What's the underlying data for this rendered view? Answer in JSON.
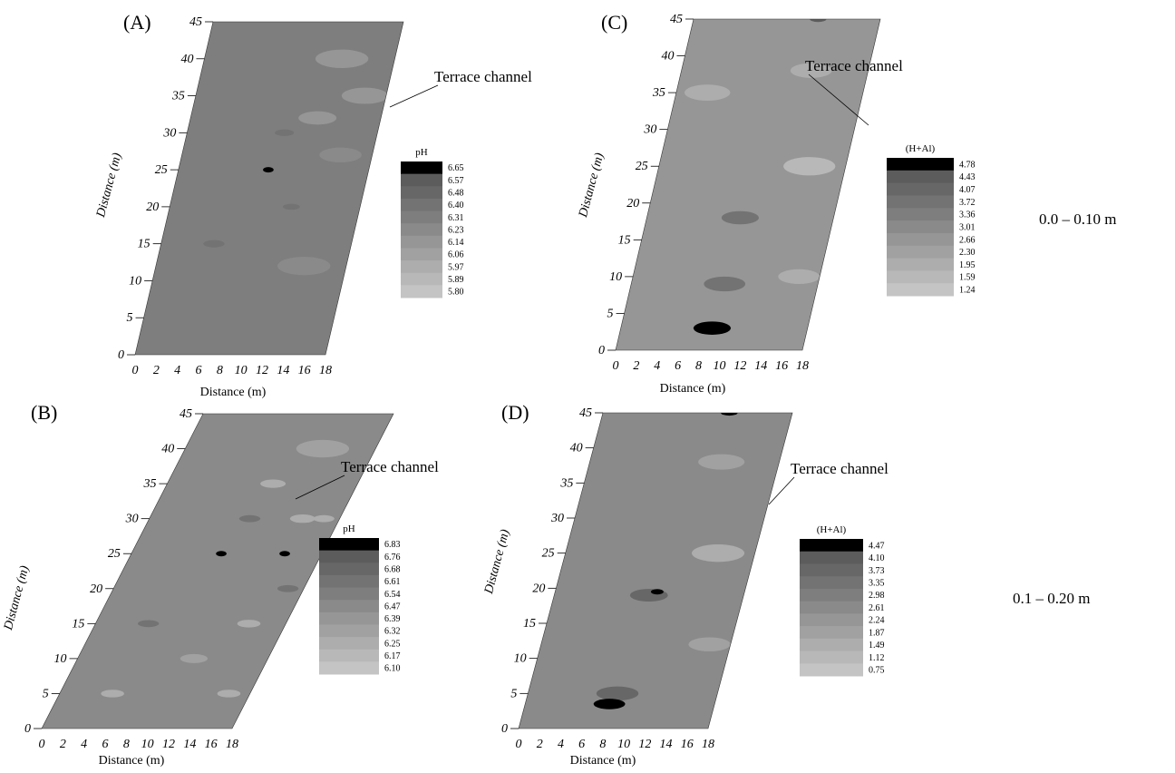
{
  "chart_data": [
    {
      "type": "heatmap",
      "panel_label": "(A)",
      "xlabel": "Distance (m)",
      "ylabel": "Distance (m)",
      "x_ticks": [
        "0",
        "2",
        "4",
        "6",
        "8",
        "10",
        "12",
        "14",
        "16",
        "18"
      ],
      "y_ticks": [
        "0",
        "5",
        "10",
        "15",
        "20",
        "25",
        "30",
        "35",
        "40",
        "45"
      ],
      "xlim": [
        0,
        18
      ],
      "ylim": [
        0,
        45
      ],
      "annotation": "Terrace channel",
      "legend_title": "pH",
      "legend_levels": [
        "6.65",
        "6.57",
        "6.48",
        "6.40",
        "6.31",
        "6.23",
        "6.14",
        "6.06",
        "5.97",
        "5.89",
        "5.80"
      ],
      "background_level": 4,
      "features": [
        {
          "x": 8.5,
          "y": 25,
          "r": 0.5,
          "level": 0
        },
        {
          "x": 9.2,
          "y": 30,
          "r": 0.9,
          "level": 3
        },
        {
          "x": 5.0,
          "y": 15,
          "r": 1.0,
          "level": 3
        },
        {
          "x": 11.5,
          "y": 20,
          "r": 0.8,
          "level": 3
        },
        {
          "x": 13,
          "y": 40,
          "r": 2.5,
          "level": 6
        },
        {
          "x": 16,
          "y": 35,
          "r": 2.2,
          "level": 6
        },
        {
          "x": 12,
          "y": 32,
          "r": 1.8,
          "level": 6
        },
        {
          "x": 15,
          "y": 27,
          "r": 2.0,
          "level": 5
        },
        {
          "x": 14,
          "y": 12,
          "r": 2.5,
          "level": 5
        }
      ]
    },
    {
      "type": "heatmap",
      "panel_label": "(B)",
      "xlabel": "Distance (m)",
      "ylabel": "Distance (m)",
      "x_ticks": [
        "0",
        "2",
        "4",
        "6",
        "8",
        "10",
        "12",
        "14",
        "16",
        "18"
      ],
      "y_ticks": [
        "0",
        "5",
        "10",
        "15",
        "20",
        "25",
        "30",
        "35",
        "40",
        "45"
      ],
      "xlim": [
        0,
        18
      ],
      "ylim": [
        0,
        45
      ],
      "annotation": "Terrace channel",
      "legend_title": "pH",
      "legend_levels": [
        "6.83",
        "6.76",
        "6.68",
        "6.61",
        "6.54",
        "6.47",
        "6.39",
        "6.32",
        "6.25",
        "6.17",
        "6.10"
      ],
      "background_level": 5,
      "features": [
        {
          "x": 8.5,
          "y": 25,
          "r": 0.5,
          "level": 0
        },
        {
          "x": 14.5,
          "y": 25,
          "r": 0.5,
          "level": 0
        },
        {
          "x": 9.5,
          "y": 30,
          "r": 1.0,
          "level": 3
        },
        {
          "x": 16.5,
          "y": 20,
          "r": 1.0,
          "level": 3
        },
        {
          "x": 5.0,
          "y": 15,
          "r": 1.0,
          "level": 3
        },
        {
          "x": 10,
          "y": 35,
          "r": 1.2,
          "level": 8
        },
        {
          "x": 14.5,
          "y": 30,
          "r": 1.2,
          "level": 8
        },
        {
          "x": 16.5,
          "y": 30,
          "r": 1.0,
          "level": 8
        },
        {
          "x": 14.5,
          "y": 15,
          "r": 1.1,
          "level": 8
        },
        {
          "x": 5.0,
          "y": 5,
          "r": 1.1,
          "level": 8
        },
        {
          "x": 16,
          "y": 5,
          "r": 1.1,
          "level": 8
        },
        {
          "x": 13,
          "y": 40,
          "r": 2.5,
          "level": 7
        },
        {
          "x": 11,
          "y": 10,
          "r": 1.3,
          "level": 7
        }
      ]
    },
    {
      "type": "heatmap",
      "panel_label": "(C)",
      "xlabel": "Distance (m)",
      "ylabel": "Distance (m)",
      "x_ticks": [
        "0",
        "2",
        "4",
        "6",
        "8",
        "10",
        "12",
        "14",
        "16",
        "18"
      ],
      "y_ticks": [
        "0",
        "5",
        "10",
        "15",
        "20",
        "25",
        "30",
        "35",
        "40",
        "45"
      ],
      "xlim": [
        0,
        18
      ],
      "ylim": [
        0,
        45
      ],
      "annotation": "Terrace channel",
      "legend_title": "(H+Al)",
      "legend_levels": [
        "4.78",
        "4.43",
        "4.07",
        "3.72",
        "3.36",
        "3.01",
        "2.66",
        "2.30",
        "1.95",
        "1.59",
        "1.24"
      ],
      "background_level": 6,
      "features": [
        {
          "x": 9.0,
          "y": 18,
          "r": 1.8,
          "level": 3
        },
        {
          "x": 9.0,
          "y": 9,
          "r": 2.0,
          "level": 3
        },
        {
          "x": 8.8,
          "y": 3,
          "r": 1.8,
          "level": 0
        },
        {
          "x": 14.5,
          "y": 25,
          "r": 2.5,
          "level": 9
        },
        {
          "x": 12.5,
          "y": 38,
          "r": 2.0,
          "level": 8
        },
        {
          "x": 16,
          "y": 10,
          "r": 2.0,
          "level": 8
        },
        {
          "x": 3,
          "y": 35,
          "r": 2.2,
          "level": 8
        },
        {
          "x": 12,
          "y": 45,
          "r": 0.8,
          "level": 1
        }
      ]
    },
    {
      "type": "heatmap",
      "panel_label": "(D)",
      "xlabel": "Distance (m)",
      "ylabel": "Distance (m)",
      "x_ticks": [
        "0",
        "2",
        "4",
        "6",
        "8",
        "10",
        "12",
        "14",
        "16",
        "18"
      ],
      "y_ticks": [
        "0",
        "5",
        "10",
        "15",
        "20",
        "25",
        "30",
        "35",
        "40",
        "45"
      ],
      "xlim": [
        0,
        18
      ],
      "ylim": [
        0,
        45
      ],
      "annotation": "Terrace channel",
      "legend_title": "(H+Al)",
      "legend_levels": [
        "4.47",
        "4.10",
        "3.73",
        "3.35",
        "2.98",
        "2.61",
        "2.24",
        "1.87",
        "1.49",
        "1.12",
        "0.75"
      ],
      "background_level": 5,
      "features": [
        {
          "x": 9.0,
          "y": 19,
          "r": 1.8,
          "level": 2
        },
        {
          "x": 8.5,
          "y": 5,
          "r": 2.0,
          "level": 2
        },
        {
          "x": 8.0,
          "y": 3.5,
          "r": 1.5,
          "level": 0
        },
        {
          "x": 9.7,
          "y": 19.5,
          "r": 0.6,
          "level": 0
        },
        {
          "x": 14.5,
          "y": 25,
          "r": 2.5,
          "level": 8
        },
        {
          "x": 12.5,
          "y": 38,
          "r": 2.2,
          "level": 7
        },
        {
          "x": 16,
          "y": 12,
          "r": 2.0,
          "level": 7
        },
        {
          "x": 12,
          "y": 45,
          "r": 0.8,
          "level": 0
        }
      ]
    }
  ],
  "depth_labels": {
    "top": "0.0 – 0.10 m",
    "bottom": "0.1 – 0.20 m"
  },
  "colors": {
    "scale_dark": "#000000",
    "scale_light": "#c4c4c4"
  }
}
